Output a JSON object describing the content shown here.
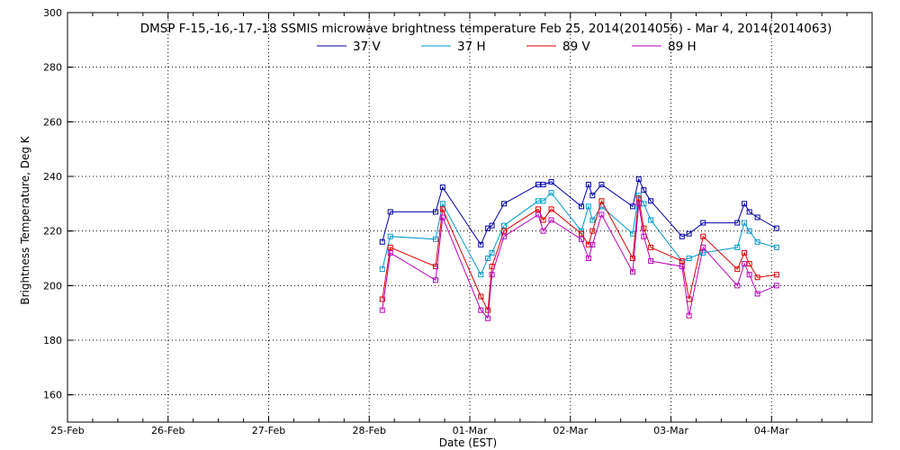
{
  "chart_data": {
    "type": "line",
    "title": "DMSP F-15,-16,-17,-18 SSMIS microwave brightness temperature Feb 25, 2014(2014056) - Mar  4, 2014(2014063)",
    "xlabel": "Date (EST)",
    "ylabel": "Brightness Temperature, Deg K",
    "xlim": [
      0,
      8
    ],
    "ylim": [
      150,
      300
    ],
    "x_ticks": [
      {
        "value": 0,
        "label": "25-Feb"
      },
      {
        "value": 1,
        "label": "26-Feb"
      },
      {
        "value": 2,
        "label": "27-Feb"
      },
      {
        "value": 3,
        "label": "28-Feb"
      },
      {
        "value": 4,
        "label": "01-Mar"
      },
      {
        "value": 5,
        "label": "02-Mar"
      },
      {
        "value": 6,
        "label": "03-Mar"
      },
      {
        "value": 7,
        "label": "04-Mar"
      }
    ],
    "y_ticks": [
      160,
      180,
      200,
      220,
      240,
      260,
      280,
      300
    ],
    "grid": true,
    "legend_position": "top",
    "series": [
      {
        "name": "37 V",
        "color": "#0000aa",
        "points": [
          [
            3.13,
            216
          ],
          [
            3.21,
            227
          ],
          [
            3.66,
            227
          ],
          [
            3.73,
            236
          ],
          [
            4.11,
            215
          ],
          [
            4.18,
            221
          ],
          [
            4.22,
            222
          ],
          [
            4.34,
            230
          ],
          [
            4.68,
            237
          ],
          [
            4.73,
            237
          ],
          [
            4.81,
            238
          ],
          [
            5.11,
            229
          ],
          [
            5.18,
            237
          ],
          [
            5.22,
            233
          ],
          [
            5.31,
            237
          ],
          [
            5.62,
            229
          ],
          [
            5.68,
            239
          ],
          [
            5.73,
            235
          ],
          [
            5.8,
            231
          ],
          [
            6.11,
            218
          ],
          [
            6.18,
            219
          ],
          [
            6.32,
            223
          ],
          [
            6.66,
            223
          ],
          [
            6.73,
            230
          ],
          [
            6.78,
            227
          ],
          [
            6.86,
            225
          ],
          [
            7.05,
            221
          ]
        ]
      },
      {
        "name": "37 H",
        "color": "#0099cc",
        "points": [
          [
            3.13,
            206
          ],
          [
            3.21,
            218
          ],
          [
            3.66,
            217
          ],
          [
            3.73,
            230
          ],
          [
            4.11,
            204
          ],
          [
            4.18,
            210
          ],
          [
            4.22,
            212
          ],
          [
            4.34,
            222
          ],
          [
            4.68,
            231
          ],
          [
            4.73,
            231
          ],
          [
            4.81,
            234
          ],
          [
            5.11,
            220
          ],
          [
            5.18,
            229
          ],
          [
            5.22,
            224
          ],
          [
            5.31,
            229
          ],
          [
            5.62,
            219
          ],
          [
            5.68,
            233
          ],
          [
            5.73,
            230
          ],
          [
            5.8,
            224
          ],
          [
            6.11,
            209
          ],
          [
            6.18,
            210
          ],
          [
            6.32,
            212
          ],
          [
            6.66,
            214
          ],
          [
            6.73,
            223
          ],
          [
            6.78,
            220
          ],
          [
            6.86,
            216
          ],
          [
            7.05,
            214
          ]
        ]
      },
      {
        "name": "89 V",
        "color": "#dd0000",
        "points": [
          [
            3.13,
            195
          ],
          [
            3.21,
            214
          ],
          [
            3.66,
            207
          ],
          [
            3.73,
            228
          ],
          [
            4.11,
            196
          ],
          [
            4.18,
            191
          ],
          [
            4.22,
            207
          ],
          [
            4.34,
            220
          ],
          [
            4.68,
            228
          ],
          [
            4.73,
            224
          ],
          [
            4.81,
            228
          ],
          [
            5.11,
            219
          ],
          [
            5.18,
            215
          ],
          [
            5.22,
            220
          ],
          [
            5.31,
            231
          ],
          [
            5.62,
            210
          ],
          [
            5.68,
            232
          ],
          [
            5.73,
            221
          ],
          [
            5.8,
            214
          ],
          [
            6.11,
            209
          ],
          [
            6.18,
            195
          ],
          [
            6.32,
            218
          ],
          [
            6.66,
            206
          ],
          [
            6.73,
            212
          ],
          [
            6.78,
            208
          ],
          [
            6.86,
            203
          ],
          [
            7.05,
            204
          ]
        ]
      },
      {
        "name": "89 H",
        "color": "#bb00bb",
        "points": [
          [
            3.13,
            191
          ],
          [
            3.21,
            212
          ],
          [
            3.66,
            202
          ],
          [
            3.73,
            225
          ],
          [
            4.11,
            191
          ],
          [
            4.18,
            188
          ],
          [
            4.22,
            204
          ],
          [
            4.34,
            218
          ],
          [
            4.68,
            226
          ],
          [
            4.73,
            220
          ],
          [
            4.81,
            224
          ],
          [
            5.11,
            217
          ],
          [
            5.18,
            210
          ],
          [
            5.22,
            215
          ],
          [
            5.31,
            226
          ],
          [
            5.62,
            205
          ],
          [
            5.68,
            230
          ],
          [
            5.73,
            218
          ],
          [
            5.8,
            209
          ],
          [
            6.11,
            207
          ],
          [
            6.18,
            189
          ],
          [
            6.32,
            214
          ],
          [
            6.66,
            200
          ],
          [
            6.73,
            208
          ],
          [
            6.78,
            204
          ],
          [
            6.86,
            197
          ],
          [
            7.05,
            200
          ]
        ]
      }
    ]
  }
}
